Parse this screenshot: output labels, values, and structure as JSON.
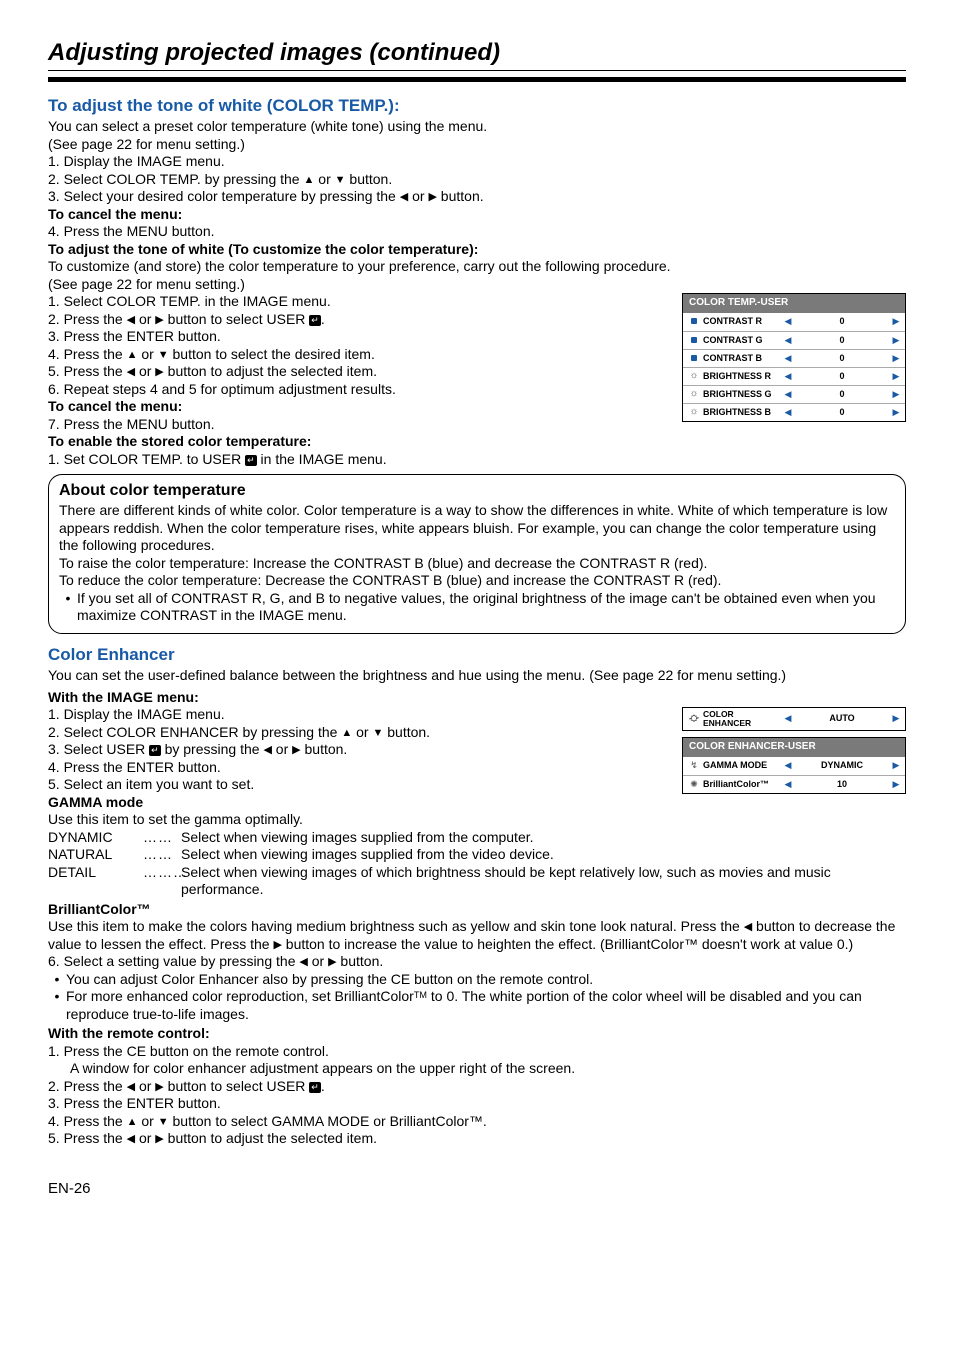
{
  "title": "Adjusting projected images (continued)",
  "colors": {
    "heading_blue": "#185aa6",
    "arrow_blue": "#1a5aa5",
    "menu_header_bg": "#7a7a7a"
  },
  "s1": {
    "h": "To adjust the tone of white (COLOR TEMP.):",
    "p1": "You can select a preset color temperature (white tone) using the menu.",
    "p2": "(See page 22 for menu setting.)",
    "l1": "1.  Display the IMAGE menu.",
    "l2a": "2.  Select COLOR TEMP.  by pressing the ",
    "l2b": " or ",
    "l2c": " button.",
    "l3a": "3.  Select your desired color temperature by pressing the ",
    "l3b": " or ",
    "l3c": " button."
  },
  "cancel1": {
    "h": "To cancel the menu:",
    "l": "4.  Press the MENU button."
  },
  "custom": {
    "h": "To adjust the tone of white (To customize the color temperature):",
    "p1": "To customize (and store) the color temperature to your preference, carry out the following procedure.",
    "p2": "(See page 22 for menu setting.)",
    "l1": "1.  Select COLOR TEMP. in the IMAGE menu.",
    "l2a": "2.  Press the ",
    "l2b": " or ",
    "l2c": " button to select USER ",
    "l2d": ".",
    "l3": "3.  Press the ENTER button.",
    "l4a": "4.  Press the ",
    "l4b": " or ",
    "l4c": " button to select the desired item.",
    "l5a": "5.  Press the ",
    "l5b": " or ",
    "l5c": " button to adjust the selected item.",
    "l6": "6.  Repeat steps 4 and 5 for optimum adjustment results."
  },
  "cancel2": {
    "h": "To cancel the menu:",
    "l": "7.  Press the MENU button."
  },
  "enable": {
    "h": "To enable the stored color temperature:",
    "l1a": "1.  Set COLOR TEMP. to USER ",
    "l1b": " in the IMAGE menu."
  },
  "menu1": {
    "header": "COLOR TEMP.-USER",
    "rows": [
      {
        "icon": "contrast",
        "label": "CONTRAST R",
        "value": "0"
      },
      {
        "icon": "contrast",
        "label": "CONTRAST G",
        "value": "0"
      },
      {
        "icon": "contrast",
        "label": "CONTRAST B",
        "value": "0"
      },
      {
        "icon": "brightness",
        "label": "BRIGHTNESS R",
        "value": "0"
      },
      {
        "icon": "brightness",
        "label": "BRIGHTNESS G",
        "value": "0"
      },
      {
        "icon": "brightness",
        "label": "BRIGHTNESS B",
        "value": "0"
      }
    ]
  },
  "about": {
    "title": "About color temperature",
    "p1": "There are different kinds of white color. Color temperature is a way to show the differences in white. White of which temperature is low appears reddish. When the color temperature rises, white appears bluish. For example, you can change the color temperature using the following procedures.",
    "p2": "To raise the color temperature: Increase the CONTRAST B (blue) and decrease the CONTRAST R (red).",
    "p3": "To reduce the color temperature: Decrease the CONTRAST B (blue) and increase the CONTRAST R (red).",
    "b1": "If you set all of CONTRAST R, G, and B to negative values, the original brightness of the image can't be obtained even when you maximize CONTRAST in the IMAGE menu."
  },
  "ce": {
    "h": "Color Enhancer",
    "p1": "You can set the user-defined balance between the brightness and hue using the menu. (See page 22 for menu setting.)",
    "wim": "With the IMAGE menu:",
    "l1": "1.  Display the IMAGE menu.",
    "l2a": "2.  Select COLOR ENHANCER by pressing the ",
    "l2b": " or ",
    "l2c": " button.",
    "l3a": "3.  Select USER ",
    "l3b": " by pressing the ",
    "l3c": " or ",
    "l3d": " button.",
    "l4": "4.  Press the ENTER button.",
    "l5": "5.  Select an item you want to set."
  },
  "menu2": {
    "outer_label": "COLOR ENHANCER",
    "outer_value": "AUTO",
    "header": "COLOR ENHANCER-USER",
    "rows": [
      {
        "label": "GAMMA MODE",
        "value": "DYNAMIC"
      },
      {
        "label": "BrilliantColor™",
        "value": "10"
      }
    ]
  },
  "gamma": {
    "h": "GAMMA mode",
    "p1": "Use this item to set the gamma optimally.",
    "modes": [
      {
        "name": "DYNAMIC",
        "dots": "……",
        "desc": "Select when viewing images supplied from the computer."
      },
      {
        "name": "NATURAL",
        "dots": "……",
        "desc": "Select when viewing images supplied from the video device."
      },
      {
        "name": "DETAIL",
        "dots": "………",
        "desc": "Select when viewing images of which brightness should be kept relatively low, such as movies and music performance."
      }
    ]
  },
  "bc": {
    "h": "BrilliantColor™",
    "p1a": "Use this item to make the colors having medium brightness such as yellow and skin tone look natural. Press the ",
    "p1b": " button to decrease the value to lessen the effect. Press the ",
    "p1c": " button to increase the value to heighten the effect. (BrilliantColor™ doesn't work at value 0.)",
    "l6a": "6.  Select a setting value by pressing the ",
    "l6b": " or ",
    "l6c": " button.",
    "b1": "You can adjust Color Enhancer also by pressing the CE button on the remote control.",
    "b2a": "For more enhanced color reproduction, set BrilliantColor",
    "b2b": " to 0. The white portion of the color wheel will be disabled and you can reproduce true-to-life images."
  },
  "remote": {
    "h": "With the remote control:",
    "l1": "1.  Press the CE button on the remote control.",
    "l1b": "A window for color enhancer adjustment appears on the upper right of the screen.",
    "l2a": "2.  Press the ",
    "l2b": " or ",
    "l2c": " button to select USER ",
    "l2d": ".",
    "l3": "3.  Press the ENTER button.",
    "l4a": "4.  Press the ",
    "l4b": " or ",
    "l4c": " button to select GAMMA MODE or BrilliantColor™.",
    "l5a": "5.  Press the ",
    "l5b": " or ",
    "l5c": " button to adjust the selected item."
  },
  "page_num": "EN-26"
}
